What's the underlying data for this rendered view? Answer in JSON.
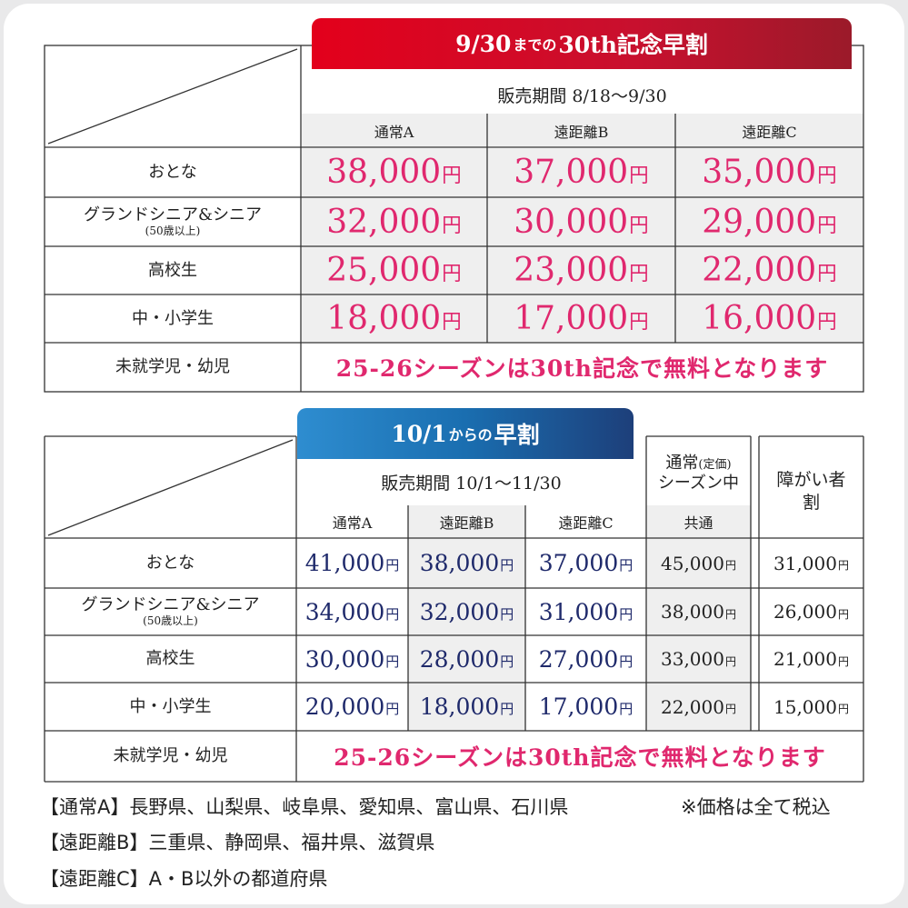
{
  "section1": {
    "banner": {
      "pre": "9/30",
      "mid": "までの",
      "post": "30th記念早割"
    },
    "period": "販売期間 8/18〜9/30",
    "columns": [
      "通常A",
      "遠距離B",
      "遠距離C"
    ],
    "rows": [
      {
        "label": "おとな",
        "sub": "",
        "prices": [
          "38,000",
          "37,000",
          "35,000"
        ]
      },
      {
        "label": "グランドシニア&シニア",
        "sub": "(50歳以上)",
        "prices": [
          "32,000",
          "30,000",
          "29,000"
        ]
      },
      {
        "label": "高校生",
        "sub": "",
        "prices": [
          "25,000",
          "23,000",
          "22,000"
        ]
      },
      {
        "label": "中・小学生",
        "sub": "",
        "prices": [
          "18,000",
          "17,000",
          "16,000"
        ]
      }
    ],
    "free_label": "未就学児・幼児",
    "free_text": "25-26シーズンは30th記念で無料となります"
  },
  "section2": {
    "banner": {
      "pre": "10/1",
      "mid": "からの",
      "post": "早割"
    },
    "period": "販売期間 10/1〜11/30",
    "columns": [
      "通常A",
      "遠距離B",
      "遠距離C"
    ],
    "regular_header": {
      "line1": "通常",
      "paren": "(定価)",
      "line2": "シーズン中",
      "col": "共通"
    },
    "disability_header": {
      "line1": "障がい者",
      "line2": "割"
    },
    "rows": [
      {
        "label": "おとな",
        "sub": "",
        "prices": [
          "41,000",
          "38,000",
          "37,000"
        ],
        "regular": "45,000",
        "disability": "31,000"
      },
      {
        "label": "グランドシニア&シニア",
        "sub": "(50歳以上)",
        "prices": [
          "34,000",
          "32,000",
          "31,000"
        ],
        "regular": "38,000",
        "disability": "26,000"
      },
      {
        "label": "高校生",
        "sub": "",
        "prices": [
          "30,000",
          "28,000",
          "27,000"
        ],
        "regular": "33,000",
        "disability": "21,000"
      },
      {
        "label": "中・小学生",
        "sub": "",
        "prices": [
          "20,000",
          "18,000",
          "17,000"
        ],
        "regular": "22,000",
        "disability": "15,000"
      }
    ],
    "free_label": "未就学児・幼児",
    "free_text": "25-26シーズンは30th記念で無料となります"
  },
  "yen": "円",
  "notes": {
    "line1": "【通常A】長野県、山梨県、岐阜県、愛知県、富山県、石川県",
    "tax": "※価格は全て税込",
    "line2": "【遠距離B】三重県、静岡県、福井県、滋賀県",
    "line3": "【遠距離C】A・B以外の都道府県"
  },
  "colors": {
    "price_pink": "#e0286e",
    "price_navy": "#1f2a6b",
    "banner_red": "#e3001b",
    "banner_blue": "#1a6eb0"
  }
}
